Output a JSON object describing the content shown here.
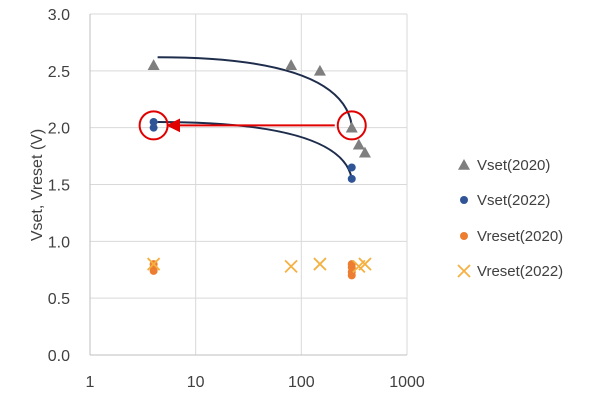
{
  "chart_data": {
    "type": "scatter",
    "title": "",
    "xlabel": "",
    "ylabel": "Vset, Vreset (V)",
    "x_scale": "log",
    "xlim": [
      1,
      1000
    ],
    "ylim": [
      0,
      3.0
    ],
    "x_ticks": [
      1,
      10,
      100,
      1000
    ],
    "x_tick_labels": [
      "1",
      "10",
      "100",
      "1000"
    ],
    "y_ticks": [
      0,
      0.5,
      1.0,
      1.5,
      2.0,
      2.5,
      3.0
    ],
    "y_tick_labels": [
      "0.0",
      "0.5",
      "1.0",
      "1.5",
      "2.0",
      "2.5",
      "3.0"
    ],
    "grid": true,
    "legend_position": "right",
    "series": [
      {
        "name": "Vset(2020)",
        "marker": "triangle",
        "color": "#7f7f7f",
        "points": [
          [
            4,
            2.55
          ],
          [
            80,
            2.55
          ],
          [
            150,
            2.5
          ],
          [
            300,
            2.0
          ],
          [
            350,
            1.85
          ],
          [
            400,
            1.78
          ]
        ]
      },
      {
        "name": "Vset(2022)",
        "marker": "circle",
        "color": "#2f5597",
        "points": [
          [
            4,
            2.05
          ],
          [
            4,
            2.0
          ],
          [
            300,
            1.65
          ],
          [
            300,
            1.55
          ]
        ]
      },
      {
        "name": "Vreset(2020)",
        "marker": "circle",
        "color": "#ed7d31",
        "points": [
          [
            4,
            0.8
          ],
          [
            4,
            0.77
          ],
          [
            4,
            0.74
          ],
          [
            300,
            0.8
          ],
          [
            300,
            0.77
          ],
          [
            300,
            0.73
          ],
          [
            300,
            0.7
          ]
        ]
      },
      {
        "name": "Vreset(2022)",
        "marker": "x",
        "color": "#f5b041",
        "points": [
          [
            4,
            0.8
          ],
          [
            80,
            0.78
          ],
          [
            150,
            0.8
          ],
          [
            350,
            0.78
          ],
          [
            400,
            0.8
          ]
        ]
      }
    ],
    "annotations": {
      "highlight_circles": [
        {
          "x": 4,
          "y": 2.02,
          "color": "#e00000"
        },
        {
          "x": 300,
          "y": 2.02,
          "color": "#e00000"
        }
      ],
      "red_arrow": {
        "from": [
          300,
          2.02
        ],
        "to": [
          4,
          2.02
        ],
        "color": "#e00000"
      },
      "curves": [
        {
          "from": [
            4,
            2.62
          ],
          "to": [
            300,
            2.02
          ],
          "color": "#1f2d4d"
        },
        {
          "from": [
            4,
            2.05
          ],
          "to": [
            300,
            1.55
          ],
          "color": "#1f2d4d"
        }
      ]
    }
  }
}
